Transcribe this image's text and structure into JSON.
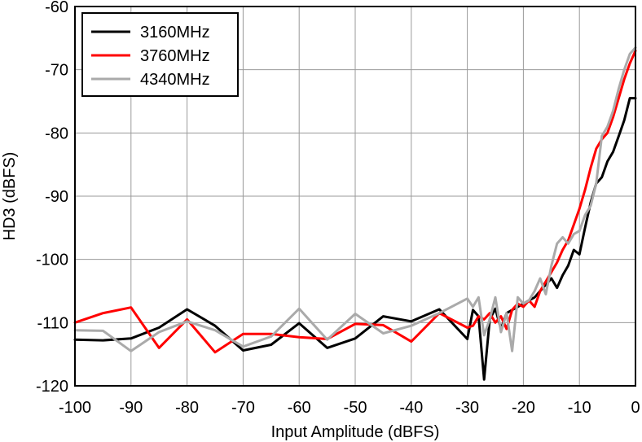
{
  "chart_data": {
    "type": "line",
    "title": "",
    "xlabel": "Input Amplitude (dBFS)",
    "ylabel": "HD3 (dBFS)",
    "xlim": [
      -100,
      0
    ],
    "ylim": [
      -120,
      -60
    ],
    "xticks": [
      -100,
      -90,
      -80,
      -70,
      -60,
      -50,
      -40,
      -30,
      -20,
      -10,
      0
    ],
    "yticks": [
      -60,
      -70,
      -80,
      -90,
      -100,
      -110,
      -120
    ],
    "grid": true,
    "legend_position": "top-left",
    "series": [
      {
        "name": "3160MHz",
        "color": "#000000",
        "x": [
          -100,
          -95,
          -90,
          -85,
          -80,
          -75,
          -70,
          -65,
          -60,
          -55,
          -50,
          -45,
          -40,
          -35,
          -30,
          -29,
          -28,
          -27,
          -26,
          -25,
          -24,
          -23,
          -22,
          -21,
          -20,
          -19,
          -18,
          -17,
          -16,
          -15,
          -14,
          -13,
          -12,
          -11,
          -10,
          -9,
          -8,
          -7,
          -6,
          -5,
          -4,
          -3,
          -2,
          -1,
          0
        ],
        "y": [
          -112.7,
          -112.8,
          -112.5,
          -110.8,
          -107.9,
          -110.5,
          -114.4,
          -113.5,
          -110.1,
          -114.0,
          -112.5,
          -109.0,
          -109.8,
          -107.9,
          -112.6,
          -108.0,
          -109.0,
          -119.0,
          -109.5,
          -107.8,
          -111.0,
          -108.5,
          -108.0,
          -107.5,
          -107.0,
          -106.5,
          -106.0,
          -105.0,
          -104.0,
          -103.0,
          -104.5,
          -102.5,
          -101.0,
          -98.5,
          -99.2,
          -95.0,
          -91.0,
          -88.0,
          -87.0,
          -84.5,
          -83.0,
          -80.5,
          -78.0,
          -74.5,
          -74.5
        ]
      },
      {
        "name": "3760MHz",
        "color": "#ff0000",
        "x": [
          -100,
          -95,
          -90,
          -85,
          -80,
          -75,
          -70,
          -65,
          -60,
          -55,
          -50,
          -45,
          -40,
          -35,
          -30,
          -29,
          -28,
          -27,
          -26,
          -25,
          -24,
          -23,
          -22,
          -21,
          -20,
          -19,
          -18,
          -17,
          -16,
          -15,
          -14,
          -13,
          -12,
          -11,
          -10,
          -9,
          -8,
          -7,
          -6,
          -5,
          -4,
          -3,
          -2,
          -1,
          0
        ],
        "y": [
          -110.0,
          -108.5,
          -107.6,
          -114.0,
          -109.5,
          -114.7,
          -111.8,
          -111.8,
          -112.3,
          -112.6,
          -110.2,
          -110.4,
          -113.0,
          -108.5,
          -110.8,
          -110.5,
          -109.0,
          -109.5,
          -108.5,
          -110.0,
          -109.0,
          -111.0,
          -108.0,
          -107.0,
          -107.5,
          -106.5,
          -107.5,
          -105.0,
          -103.5,
          -102.0,
          -100.5,
          -98.5,
          -97.0,
          -94.5,
          -92.0,
          -89.0,
          -85.5,
          -82.5,
          -81.0,
          -80.0,
          -77.5,
          -74.5,
          -71.5,
          -69.0,
          -67.0
        ]
      },
      {
        "name": "4340MHz",
        "color": "#aaaaaa",
        "x": [
          -100,
          -95,
          -90,
          -85,
          -80,
          -75,
          -70,
          -65,
          -60,
          -55,
          -50,
          -45,
          -40,
          -35,
          -30,
          -29,
          -28,
          -27,
          -26,
          -25,
          -24,
          -23,
          -22,
          -21,
          -20,
          -19,
          -18,
          -17,
          -16,
          -15,
          -14,
          -13,
          -12,
          -11,
          -10,
          -9,
          -8,
          -7,
          -6,
          -5,
          -4,
          -3,
          -2,
          -1,
          0
        ],
        "y": [
          -111.2,
          -111.3,
          -114.5,
          -111.5,
          -109.8,
          -111.2,
          -113.8,
          -112.2,
          -107.8,
          -112.7,
          -108.6,
          -111.7,
          -110.5,
          -108.5,
          -106.2,
          -107.5,
          -106.0,
          -112.0,
          -109.5,
          -106.0,
          -111.5,
          -108.5,
          -114.5,
          -106.0,
          -107.0,
          -106.5,
          -105.0,
          -103.0,
          -105.5,
          -101.0,
          -97.5,
          -96.5,
          -97.5,
          -96.0,
          -95.5,
          -93.0,
          -91.5,
          -88.0,
          -80.5,
          -79.0,
          -76.5,
          -73.0,
          -70.0,
          -67.5,
          -66.5
        ]
      }
    ]
  }
}
